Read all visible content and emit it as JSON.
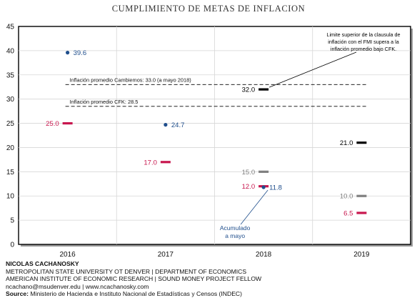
{
  "chart_data": {
    "type": "scatter",
    "title": "CUMPLIMIENTO DE METAS DE INFLACION",
    "categories": [
      "2016",
      "2017",
      "2018",
      "2019"
    ],
    "ylim": [
      0,
      45
    ],
    "yticks": [
      0,
      5,
      10,
      15,
      20,
      25,
      30,
      35,
      40,
      45
    ],
    "grid": true,
    "marks": [
      {
        "category": "2016",
        "value": 39.6,
        "label": "39.6",
        "shape": "dot",
        "color": "#1f4e8c",
        "labelSide": "right"
      },
      {
        "category": "2016",
        "value": 25.0,
        "label": "25.0",
        "shape": "dash",
        "color": "#c8174e",
        "labelSide": "left"
      },
      {
        "category": "2017",
        "value": 24.7,
        "label": "24.7",
        "shape": "dot",
        "color": "#1f4e8c",
        "labelSide": "right"
      },
      {
        "category": "2017",
        "value": 17.0,
        "label": "17.0",
        "shape": "dash",
        "color": "#c8174e",
        "labelSide": "left"
      },
      {
        "category": "2018",
        "value": 32.0,
        "label": "32.0",
        "shape": "dash",
        "color": "#000000",
        "labelSide": "left"
      },
      {
        "category": "2018",
        "value": 15.0,
        "label": "15.0",
        "shape": "dash",
        "color": "#7f7f7f",
        "labelSide": "left"
      },
      {
        "category": "2018",
        "value": 12.0,
        "label": "12.0",
        "shape": "dash",
        "color": "#c8174e",
        "labelSide": "left"
      },
      {
        "category": "2018",
        "value": 11.8,
        "label": "11.8",
        "shape": "dot",
        "color": "#1f4e8c",
        "labelSide": "right"
      },
      {
        "category": "2019",
        "value": 21.0,
        "label": "21.0",
        "shape": "dash",
        "color": "#000000",
        "labelSide": "left"
      },
      {
        "category": "2019",
        "value": 10.0,
        "label": "10.0",
        "shape": "dash",
        "color": "#7f7f7f",
        "labelSide": "left"
      },
      {
        "category": "2019",
        "value": 6.5,
        "label": "6.5",
        "shape": "dash",
        "color": "#c8174e",
        "labelSide": "left"
      }
    ],
    "reference_lines": [
      {
        "value": 33.0,
        "label": "Inflación promedio Cambiemos: 33.0 (a mayo 2018)"
      },
      {
        "value": 28.5,
        "label": "Inflación promedio CFK: 28.5"
      }
    ],
    "annotations": [
      {
        "text_lines": [
          "Limite superior de la clausula de",
          "inflación con el FMI supera a la",
          "inflación promedio bajo CFK."
        ],
        "points_to": {
          "category": "2018",
          "value": 32.0
        },
        "color": "#000000"
      },
      {
        "text_lines": [
          "Acumulado",
          "a mayo"
        ],
        "points_to": {
          "category": "2018",
          "value": 11.8
        },
        "color": "#1f4e8c"
      }
    ]
  },
  "footer": {
    "author": "NICOLAS CACHANOSKY",
    "affiliation1": "METROPOLITAN STATE UNIVERSITY OT DENVER | DEPARTMENT OF ECONOMICS",
    "affiliation2": "AMERICAN INSTITUTE OF ECONOMIC RESEARCH | SOUND MONEY PROJECT FELLOW",
    "contact": "ncachano@msudenver.edu  |  www.ncachanosky.com",
    "source_label": "Source:",
    "source_text": " Ministerio de Hacienda e Instituto Nacional de Estadísticas y Censos (INDEC)"
  }
}
